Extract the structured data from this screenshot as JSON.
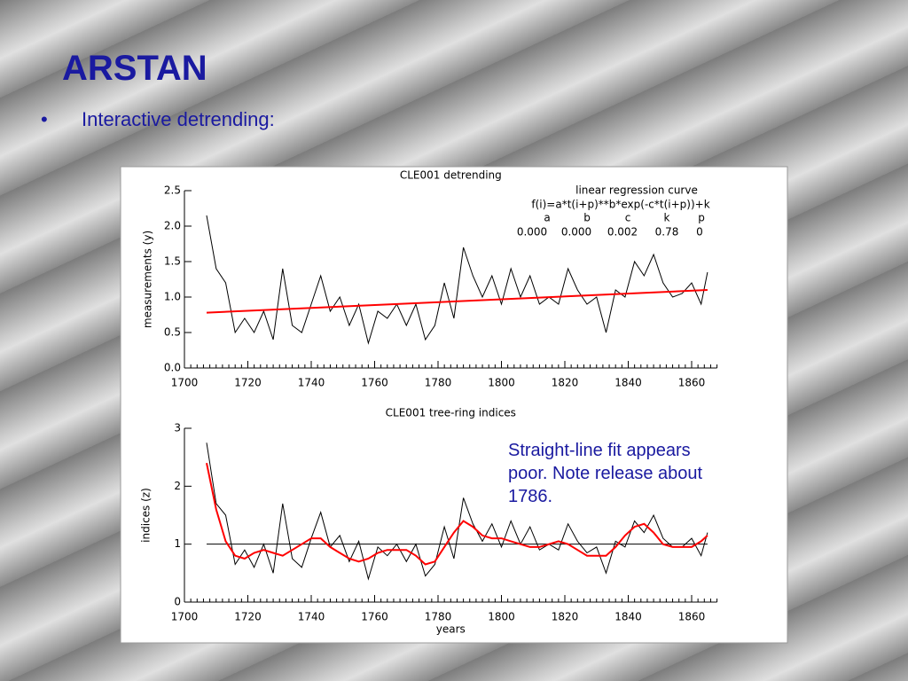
{
  "slide": {
    "title": "ARSTAN",
    "bullet": "Interactive detrending:",
    "note": [
      "Straight-line fit appears",
      "poor. Note release about",
      "1786."
    ]
  },
  "chart_data": [
    {
      "type": "line",
      "title": "CLE001 detrending",
      "ylabel": "measurements (y)",
      "annotation": {
        "title": "linear regression curve",
        "formula": "f(i)=a*t(i+p)**b*exp(-c*t(i+p))+k",
        "names": [
          "a",
          "b",
          "c",
          "k",
          "p"
        ],
        "labels": [
          "0.000",
          "0.000",
          "0.002",
          "0.78",
          "0"
        ]
      },
      "x": [
        1707,
        1710,
        1713,
        1716,
        1719,
        1722,
        1725,
        1728,
        1731,
        1734,
        1737,
        1740,
        1743,
        1746,
        1749,
        1752,
        1755,
        1758,
        1761,
        1764,
        1767,
        1770,
        1773,
        1776,
        1779,
        1782,
        1785,
        1788,
        1791,
        1794,
        1797,
        1800,
        1803,
        1806,
        1809,
        1812,
        1815,
        1818,
        1821,
        1824,
        1827,
        1830,
        1833,
        1836,
        1839,
        1842,
        1845,
        1848,
        1851,
        1854,
        1857,
        1860,
        1863,
        1865
      ],
      "series": [
        {
          "color": "#000000",
          "values": [
            2.15,
            1.4,
            1.2,
            0.5,
            0.7,
            0.5,
            0.8,
            0.4,
            1.4,
            0.6,
            0.5,
            0.9,
            1.3,
            0.8,
            1.0,
            0.6,
            0.9,
            0.35,
            0.8,
            0.7,
            0.9,
            0.6,
            0.9,
            0.4,
            0.6,
            1.2,
            0.7,
            1.7,
            1.3,
            1.0,
            1.3,
            0.9,
            1.4,
            1.0,
            1.3,
            0.9,
            1.0,
            0.9,
            1.4,
            1.1,
            0.9,
            1.0,
            0.5,
            1.1,
            1.0,
            1.5,
            1.3,
            1.6,
            1.2,
            1.0,
            1.05,
            1.2,
            0.9,
            1.35
          ]
        },
        {
          "color": "#ff0000",
          "x": [
            1707,
            1865
          ],
          "values": [
            0.78,
            1.1
          ]
        }
      ],
      "xlim": [
        1700,
        1868
      ],
      "xticks": [
        1700,
        1720,
        1740,
        1760,
        1780,
        1800,
        1820,
        1840,
        1860
      ],
      "xminor": 2,
      "ylim": [
        0,
        2.5
      ],
      "yticks": [
        {
          "value": 0,
          "label": "0.0"
        },
        0.5,
        {
          "value": 1,
          "label": "1.0"
        },
        1.5,
        {
          "value": 2,
          "label": "2.0"
        },
        2.5
      ]
    },
    {
      "type": "line",
      "title": "CLE001 tree-ring indices",
      "ylabel": "indices (z)",
      "xlabel": "years",
      "x": [
        1707,
        1710,
        1713,
        1716,
        1719,
        1722,
        1725,
        1728,
        1731,
        1734,
        1737,
        1740,
        1743,
        1746,
        1749,
        1752,
        1755,
        1758,
        1761,
        1764,
        1767,
        1770,
        1773,
        1776,
        1779,
        1782,
        1785,
        1788,
        1791,
        1794,
        1797,
        1800,
        1803,
        1806,
        1809,
        1812,
        1815,
        1818,
        1821,
        1824,
        1827,
        1830,
        1833,
        1836,
        1839,
        1842,
        1845,
        1848,
        1851,
        1854,
        1857,
        1860,
        1863,
        1865
      ],
      "series": [
        {
          "color": "#000000",
          "values": [
            2.75,
            1.7,
            1.5,
            0.65,
            0.9,
            0.6,
            1.0,
            0.5,
            1.7,
            0.75,
            0.6,
            1.1,
            1.55,
            0.95,
            1.15,
            0.7,
            1.05,
            0.4,
            0.95,
            0.8,
            1.0,
            0.7,
            1.0,
            0.45,
            0.65,
            1.3,
            0.75,
            1.8,
            1.35,
            1.05,
            1.35,
            0.95,
            1.4,
            1.0,
            1.3,
            0.9,
            1.0,
            0.9,
            1.35,
            1.05,
            0.85,
            0.95,
            0.5,
            1.05,
            0.95,
            1.4,
            1.2,
            1.5,
            1.1,
            0.95,
            0.95,
            1.1,
            0.8,
            1.2
          ]
        },
        {
          "color": "#ff0000",
          "values": [
            2.4,
            1.6,
            1.05,
            0.8,
            0.75,
            0.85,
            0.9,
            0.85,
            0.8,
            0.9,
            1.0,
            1.1,
            1.1,
            0.95,
            0.85,
            0.75,
            0.7,
            0.75,
            0.85,
            0.9,
            0.9,
            0.9,
            0.8,
            0.65,
            0.7,
            0.95,
            1.2,
            1.4,
            1.3,
            1.15,
            1.1,
            1.1,
            1.05,
            1.0,
            0.95,
            0.95,
            1.0,
            1.05,
            1.0,
            0.9,
            0.8,
            0.8,
            0.8,
            0.95,
            1.15,
            1.3,
            1.35,
            1.2,
            1.0,
            0.95,
            0.95,
            0.95,
            1.05,
            1.15
          ]
        }
      ],
      "reference": 1,
      "xlim": [
        1700,
        1868
      ],
      "xticks": [
        1700,
        1720,
        1740,
        1760,
        1780,
        1800,
        1820,
        1840,
        1860
      ],
      "xminor": 2,
      "ylim": [
        0,
        3
      ],
      "yticks": [
        0,
        1,
        2,
        3
      ]
    }
  ]
}
